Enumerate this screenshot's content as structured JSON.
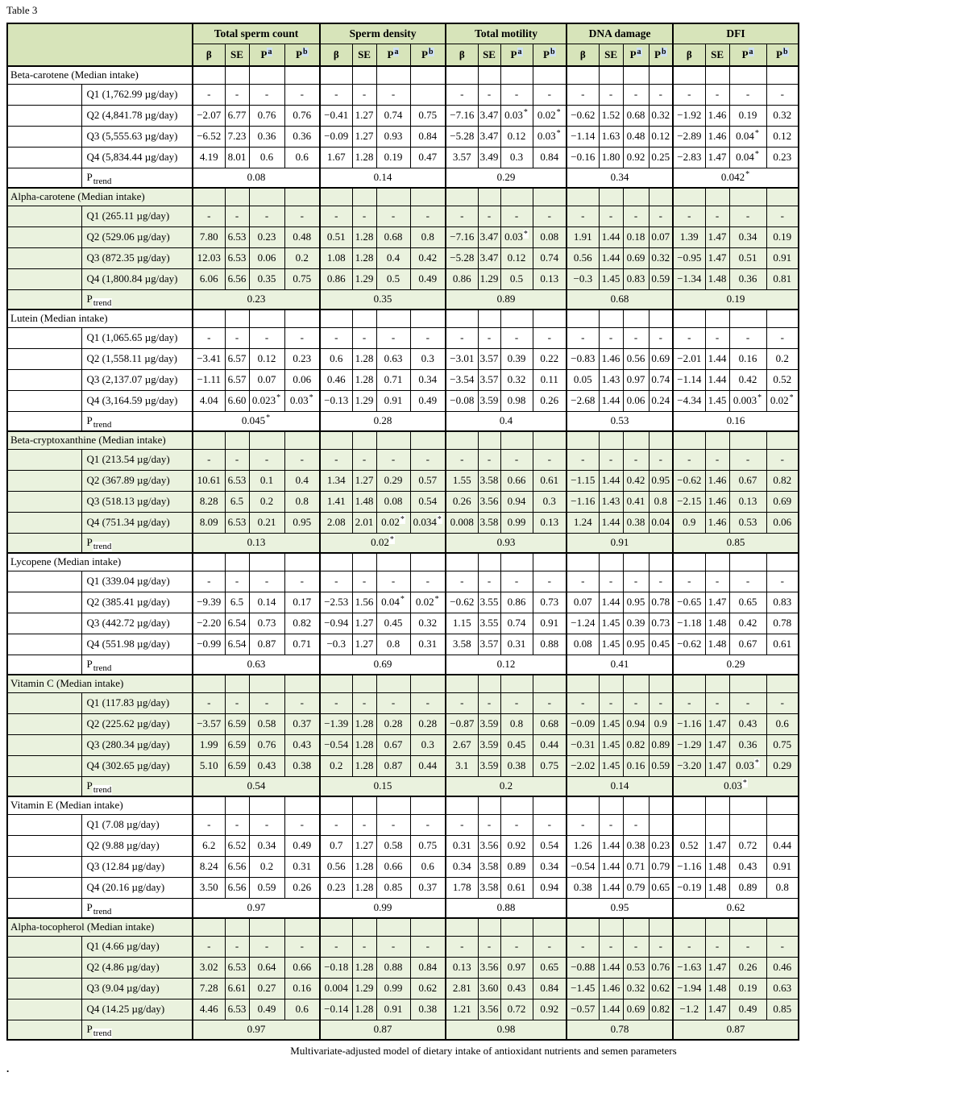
{
  "page": {
    "table_label": "Table 3",
    "caption": "Multivariate-adjusted model of dietary intake of antioxidant nutrients and semen parameters",
    "trailing_dot": "."
  },
  "colors": {
    "header_bg": "#d7e4ba",
    "section_tint": "#eaf2de",
    "superscript_highlight": "#cfe1f4"
  },
  "table": {
    "groups": [
      "Total sperm count",
      "Sperm density",
      "Total motility",
      "DNA damage",
      "DFI"
    ],
    "subcolumns": [
      {
        "base": "β",
        "sup": ""
      },
      {
        "base": "SE",
        "sup": ""
      },
      {
        "base": "P",
        "sup": "a"
      },
      {
        "base": "P",
        "sup": "b"
      }
    ],
    "ptrend_label": {
      "base": "P",
      "sub": "trend"
    },
    "sections": [
      {
        "name": "Beta-carotene (Median intake)",
        "tint": false,
        "rows": [
          {
            "label": "Q1 (1,762.99 µg/day)",
            "cells": [
              "-",
              "-",
              "-",
              "-",
              "-",
              "-",
              "-",
              "",
              "-",
              "-",
              "-",
              "-",
              "-",
              "-",
              "-",
              "-",
              "-",
              "-",
              "-",
              "-"
            ]
          },
          {
            "label": "Q2 (4,841.78 µg/day)",
            "cells": [
              "−2.07",
              "6.77",
              "0.76",
              "0.76",
              "−0.41",
              "1.27",
              "0.74",
              "0.75",
              "−7.16",
              "3.47",
              "0.03*",
              "0.02*",
              "−0.62",
              "1.52",
              "0.68",
              "0.32",
              "−1.92",
              "1.46",
              "0.19",
              "0.32"
            ]
          },
          {
            "label": "Q3 (5,555.63 µg/day)",
            "cells": [
              "−6.52",
              "7.23",
              "0.36",
              "0.36",
              "−0.09",
              "1.27",
              "0.93",
              "0.84",
              "−5.28",
              "3.47",
              "0.12",
              "0.03*",
              "−1.14",
              "1.63",
              "0.48",
              "0.12",
              "−2.89",
              "1.46",
              "0.04*",
              "0.12"
            ]
          },
          {
            "label": "Q4 (5,834.44 µg/day)",
            "cells": [
              "4.19",
              "8.01",
              "0.6",
              "0.6",
              "1.67",
              "1.28",
              "0.19",
              "0.47",
              "3.57",
              "3.49",
              "0.3",
              "0.84",
              "−0.16",
              "1.80",
              "0.92",
              "0.25",
              "−2.83",
              "1.47",
              "0.04*",
              "0.23"
            ]
          }
        ],
        "ptrend": [
          "0.08",
          "0.14",
          "0.29",
          "0.34",
          "0.042*"
        ]
      },
      {
        "name": "Alpha-carotene (Median intake)",
        "tint": true,
        "rows": [
          {
            "label": "Q1 (265.11 µg/day)",
            "cells": [
              "-",
              "-",
              "-",
              "-",
              "-",
              "-",
              "-",
              "-",
              "-",
              "-",
              "-",
              "-",
              "-",
              "-",
              "-",
              "-",
              "-",
              "-",
              "-",
              "-"
            ]
          },
          {
            "label": "Q2 (529.06 µg/day)",
            "cells": [
              "7.80",
              "6.53",
              "0.23",
              "0.48",
              "0.51",
              "1.28",
              "0.68",
              "0.8",
              "−7.16",
              "3.47",
              "0.03*",
              "0.08",
              "1.91",
              "1.44",
              "0.18",
              "0.07",
              "1.39",
              "1.47",
              "0.34",
              "0.19"
            ]
          },
          {
            "label": "Q3 (872.35 µg/day)",
            "cells": [
              "12.03",
              "6.53",
              "0.06",
              "0.2",
              "1.08",
              "1.28",
              "0.4",
              "0.42",
              "−5.28",
              "3.47",
              "0.12",
              "0.74",
              "0.56",
              "1.44",
              "0.69",
              "0.32",
              "−0.95",
              "1.47",
              "0.51",
              "0.91"
            ]
          },
          {
            "label": "Q4 (1,800.84 µg/day)",
            "cells": [
              "6.06",
              "6.56",
              "0.35",
              "0.75",
              "0.86",
              "1.29",
              "0.5",
              "0.49",
              "0.86",
              "1.29",
              "0.5",
              "0.13",
              "−0.3",
              "1.45",
              "0.83",
              "0.59",
              "−1.34",
              "1.48",
              "0.36",
              "0.81"
            ]
          }
        ],
        "ptrend": [
          "0.23",
          "0.35",
          "0.89",
          "0.68",
          "0.19"
        ]
      },
      {
        "name": "Lutein (Median intake)",
        "tint": false,
        "rows": [
          {
            "label": "Q1 (1,065.65 µg/day)",
            "cells": [
              "-",
              "-",
              "-",
              "-",
              "-",
              "-",
              "-",
              "-",
              "-",
              "-",
              "-",
              "-",
              "-",
              "-",
              "-",
              "-",
              "-",
              "-",
              "-",
              "-"
            ]
          },
          {
            "label": "Q2 (1,558.11 µg/day)",
            "cells": [
              "−3.41",
              "6.57",
              "0.12",
              "0.23",
              "0.6",
              "1.28",
              "0.63",
              "0.3",
              "−3.01",
              "3.57",
              "0.39",
              "0.22",
              "−0.83",
              "1.46",
              "0.56",
              "0.69",
              "−2.01",
              "1.44",
              "0.16",
              "0.2"
            ]
          },
          {
            "label": "Q3 (2,137.07 µg/day)",
            "cells": [
              "−1.11",
              "6.57",
              "0.07",
              "0.06",
              "0.46",
              "1.28",
              "0.71",
              "0.34",
              "−3.54",
              "3.57",
              "0.32",
              "0.11",
              "0.05",
              "1.43",
              "0.97",
              "0.74",
              "−1.14",
              "1.44",
              "0.42",
              "0.52"
            ]
          },
          {
            "label": "Q4 (3,164.59 µg/day)",
            "cells": [
              "4.04",
              "6.60",
              "0.023*",
              "0.03*",
              "−0.13",
              "1.29",
              "0.91",
              "0.49",
              "−0.08",
              "3.59",
              "0.98",
              "0.26",
              "−2.68",
              "1.44",
              "0.06",
              "0.24",
              "−4.34",
              "1.45",
              "0.003*",
              "0.02*"
            ]
          }
        ],
        "ptrend": [
          "0.045*",
          "0.28",
          "0.4",
          "0.53",
          "0.16"
        ]
      },
      {
        "name": "Beta-cryptoxanthine (Median intake)",
        "tint": true,
        "rows": [
          {
            "label": "Q1 (213.54 µg/day)",
            "cells": [
              "-",
              "-",
              "-",
              "-",
              "-",
              "-",
              "-",
              "-",
              "-",
              "-",
              "-",
              "-",
              "-",
              "-",
              "-",
              "-",
              "-",
              "-",
              "-",
              "-"
            ]
          },
          {
            "label": "Q2 (367.89 µg/day)",
            "cells": [
              "10.61",
              "6.53",
              "0.1",
              "0.4",
              "1.34",
              "1.27",
              "0.29",
              "0.57",
              "1.55",
              "3.58",
              "0.66",
              "0.61",
              "−1.15",
              "1.44",
              "0.42",
              "0.95",
              "−0.62",
              "1.46",
              "0.67",
              "0.82"
            ]
          },
          {
            "label": "Q3 (518.13 µg/day)",
            "cells": [
              "8.28",
              "6.5",
              "0.2",
              "0.8",
              "1.41",
              "1.48",
              "0.08",
              "0.54",
              "0.26",
              "3.56",
              "0.94",
              "0.3",
              "−1.16",
              "1.43",
              "0.41",
              "0.8",
              "−2.15",
              "1.46",
              "0.13",
              "0.69"
            ]
          },
          {
            "label": "Q4 (751.34 µg/day)",
            "cells": [
              "8.09",
              "6.53",
              "0.21",
              "0.95",
              "2.08",
              "2.01",
              "0.02*",
              "0.034*",
              "0.008",
              "3.58",
              "0.99",
              "0.13",
              "1.24",
              "1.44",
              "0.38",
              "0.04",
              "0.9",
              "1.46",
              "0.53",
              "0.06"
            ]
          }
        ],
        "ptrend": [
          "0.13",
          "0.02*",
          "0.93",
          "0.91",
          "0.85"
        ]
      },
      {
        "name": "Lycopene (Median intake)",
        "tint": false,
        "rows": [
          {
            "label": "Q1 (339.04 µg/day)",
            "cells": [
              "-",
              "-",
              "-",
              "-",
              "-",
              "-",
              "-",
              "-",
              "-",
              "-",
              "-",
              "-",
              "-",
              "-",
              "-",
              "-",
              "-",
              "-",
              "-",
              "-"
            ]
          },
          {
            "label": "Q2 (385.41 µg/day)",
            "cells": [
              "−9.39",
              "6.5",
              "0.14",
              "0.17",
              "−2.53",
              "1.56",
              "0.04*",
              "0.02*",
              "−0.62",
              "3.55",
              "0.86",
              "0.73",
              "0.07",
              "1.44",
              "0.95",
              "0.78",
              "−0.65",
              "1.47",
              "0.65",
              "0.83"
            ]
          },
          {
            "label": "Q3 (442.72 µg/day)",
            "cells": [
              "−2.20",
              "6.54",
              "0.73",
              "0.82",
              "−0.94",
              "1.27",
              "0.45",
              "0.32",
              "1.15",
              "3.55",
              "0.74",
              "0.91",
              "−1.24",
              "1.45",
              "0.39",
              "0.73",
              "−1.18",
              "1.48",
              "0.42",
              "0.78"
            ]
          },
          {
            "label": "Q4 (551.98 µg/day)",
            "cells": [
              "−0.99",
              "6.54",
              "0.87",
              "0.71",
              "−0.3",
              "1.27",
              "0.8",
              "0.31",
              "3.58",
              "3.57",
              "0.31",
              "0.88",
              "0.08",
              "1.45",
              "0.95",
              "0.45",
              "−0.62",
              "1.48",
              "0.67",
              "0.61"
            ]
          }
        ],
        "ptrend": [
          "0.63",
          "0.69",
          "0.12",
          "0.41",
          "0.29"
        ]
      },
      {
        "name": "Vitamin C (Median intake)",
        "tint": true,
        "rows": [
          {
            "label": "Q1 (117.83 µg/day)",
            "cells": [
              "-",
              "-",
              "-",
              "-",
              "-",
              "-",
              "-",
              "-",
              "-",
              "-",
              "-",
              "-",
              "-",
              "-",
              "-",
              "-",
              "-",
              "-",
              "-",
              "-"
            ]
          },
          {
            "label": "Q2 (225.62 µg/day)",
            "cells": [
              "−3.57",
              "6.59",
              "0.58",
              "0.37",
              "−1.39",
              "1.28",
              "0.28",
              "0.28",
              "−0.87",
              "3.59",
              "0.8",
              "0.68",
              "−0.09",
              "1.45",
              "0.94",
              "0.9",
              "−1.16",
              "1.47",
              "0.43",
              "0.6"
            ]
          },
          {
            "label": "Q3 (280.34 µg/day)",
            "cells": [
              "1.99",
              "6.59",
              "0.76",
              "0.43",
              "−0.54",
              "1.28",
              "0.67",
              "0.3",
              "2.67",
              "3.59",
              "0.45",
              "0.44",
              "−0.31",
              "1.45",
              "0.82",
              "0.89",
              "−1.29",
              "1.47",
              "0.36",
              "0.75"
            ]
          },
          {
            "label": "Q4 (302.65 µg/day)",
            "cells": [
              "5.10",
              "6.59",
              "0.43",
              "0.38",
              "0.2",
              "1.28",
              "0.87",
              "0.44",
              "3.1",
              "3.59",
              "0.38",
              "0.75",
              "−2.02",
              "1.45",
              "0.16",
              "0.59",
              "−3.20",
              "1.47",
              "0.03*",
              "0.29"
            ]
          }
        ],
        "ptrend": [
          "0.54",
          "0.15",
          "0.2",
          "0.14",
          "0.03*"
        ]
      },
      {
        "name": "Vitamin E (Median intake)",
        "tint": false,
        "rows": [
          {
            "label": "Q1 (7.08 µg/day)",
            "cells": [
              "-",
              "-",
              "-",
              "-",
              "-",
              "-",
              "-",
              "-",
              "-",
              "-",
              "-",
              "-",
              "-",
              "-",
              "-",
              "",
              "",
              "",
              "",
              ""
            ]
          },
          {
            "label": "Q2 (9.88 µg/day)",
            "cells": [
              "6.2",
              "6.52",
              "0.34",
              "0.49",
              "0.7",
              "1.27",
              "0.58",
              "0.75",
              "0.31",
              "3.56",
              "0.92",
              "0.54",
              "1.26",
              "1.44",
              "0.38",
              "0.23",
              "0.52",
              "1.47",
              "0.72",
              "0.44"
            ]
          },
          {
            "label": "Q3 (12.84 µg/day)",
            "cells": [
              "8.24",
              "6.56",
              "0.2",
              "0.31",
              "0.56",
              "1.28",
              "0.66",
              "0.6",
              "0.34",
              "3.58",
              "0.89",
              "0.34",
              "−0.54",
              "1.44",
              "0.71",
              "0.79",
              "−1.16",
              "1.48",
              "0.43",
              "0.91"
            ]
          },
          {
            "label": "Q4 (20.16 µg/day)",
            "cells": [
              "3.50",
              "6.56",
              "0.59",
              "0.26",
              "0.23",
              "1.28",
              "0.85",
              "0.37",
              "1.78",
              "3.58",
              "0.61",
              "0.94",
              "0.38",
              "1.44",
              "0.79",
              "0.65",
              "−0.19",
              "1.48",
              "0.89",
              "0.8"
            ]
          }
        ],
        "ptrend": [
          "0.97",
          "0.99",
          "0.88",
          "0.95",
          "0.62"
        ]
      },
      {
        "name": "Alpha-tocopherol (Median intake)",
        "tint": true,
        "rows": [
          {
            "label": "Q1 (4.66 µg/day)",
            "cells": [
              "-",
              "-",
              "-",
              "-",
              "-",
              "-",
              "-",
              "-",
              "-",
              "-",
              "-",
              "-",
              "-",
              "-",
              "-",
              "-",
              "-",
              "-",
              "-",
              "-"
            ]
          },
          {
            "label": "Q2 (4.86 µg/day)",
            "cells": [
              "3.02",
              "6.53",
              "0.64",
              "0.66",
              "−0.18",
              "1.28",
              "0.88",
              "0.84",
              "0.13",
              "3.56",
              "0.97",
              "0.65",
              "−0.88",
              "1.44",
              "0.53",
              "0.76",
              "−1.63",
              "1.47",
              "0.26",
              "0.46"
            ]
          },
          {
            "label": "Q3 (9.04 µg/day)",
            "cells": [
              "7.28",
              "6.61",
              "0.27",
              "0.16",
              "0.004",
              "1.29",
              "0.99",
              "0.62",
              "2.81",
              "3.60",
              "0.43",
              "0.84",
              "−1.45",
              "1.46",
              "0.32",
              "0.62",
              "−1.94",
              "1.48",
              "0.19",
              "0.63"
            ]
          },
          {
            "label": "Q4 (14.25 µg/day)",
            "cells": [
              "4.46",
              "6.53",
              "0.49",
              "0.6",
              "−0.14",
              "1.28",
              "0.91",
              "0.38",
              "1.21",
              "3.56",
              "0.72",
              "0.92",
              "−0.57",
              "1.44",
              "0.69",
              "0.82",
              "−1.2",
              "1.47",
              "0.49",
              "0.85"
            ]
          }
        ],
        "ptrend": [
          "0.97",
          "0.87",
          "0.98",
          "0.78",
          "0.87"
        ]
      }
    ]
  }
}
